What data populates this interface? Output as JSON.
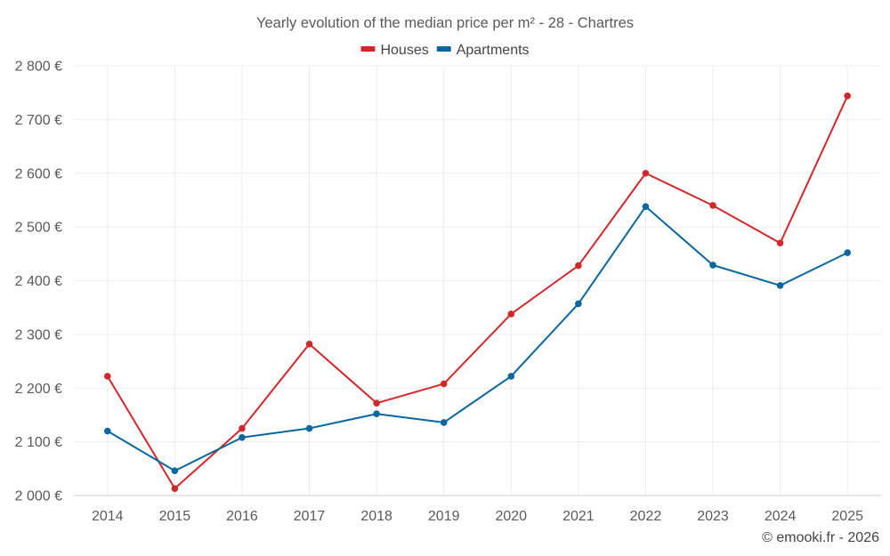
{
  "chart_data": {
    "type": "line",
    "title": "Yearly evolution of the median price per m² - 28 - Chartres",
    "xlabel": "",
    "ylabel": "",
    "categories": [
      "2014",
      "2015",
      "2016",
      "2017",
      "2018",
      "2019",
      "2020",
      "2021",
      "2022",
      "2023",
      "2024",
      "2025"
    ],
    "ylim": [
      2000,
      2800
    ],
    "yticks": [
      2000,
      2100,
      2200,
      2300,
      2400,
      2500,
      2600,
      2700,
      2800
    ],
    "ytick_labels": [
      "2 000 €",
      "2 100 €",
      "2 200 €",
      "2 300 €",
      "2 400 €",
      "2 500 €",
      "2 600 €",
      "2 700 €",
      "2 800 €"
    ],
    "grid": true,
    "legend_position": "top-center",
    "series": [
      {
        "name": "Houses",
        "color": "#d3282b",
        "values": [
          2222,
          2013,
          2125,
          2282,
          2172,
          2208,
          2338,
          2428,
          2600,
          2540,
          2470,
          2744
        ]
      },
      {
        "name": "Apartments",
        "color": "#09679f",
        "values": [
          2120,
          2046,
          2108,
          2125,
          2152,
          2136,
          2222,
          2357,
          2538,
          2429,
          2391,
          2452
        ]
      }
    ]
  },
  "credit": "© emooki.fr - 2026"
}
